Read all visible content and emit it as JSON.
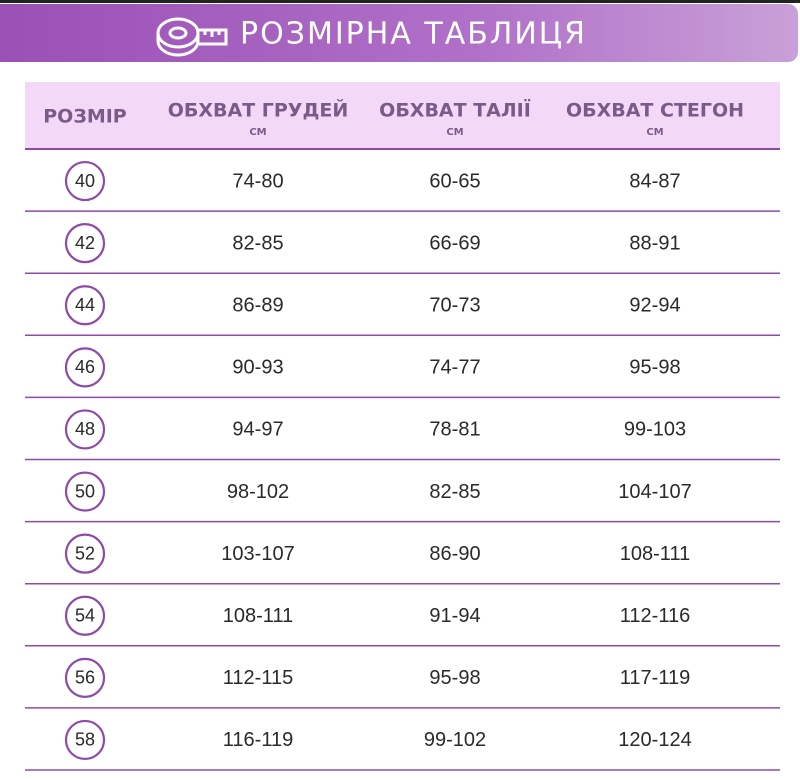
{
  "header": {
    "title": "РОЗМІРНА ТАБЛИЦЯ"
  },
  "table": {
    "columns": [
      {
        "label": "РОЗМІР"
      },
      {
        "label": "ОБХВАТ ГРУДЕЙ",
        "unit": "СМ"
      },
      {
        "label": "ОБХВАТ ТАЛІЇ",
        "unit": "СМ"
      },
      {
        "label": "ОБХВАТ СТЕГОН",
        "unit": "СМ"
      }
    ],
    "rows": [
      [
        "40",
        "74-80",
        "60-65",
        "84-87"
      ],
      [
        "42",
        "82-85",
        "66-69",
        "88-91"
      ],
      [
        "44",
        "86-89",
        "70-73",
        "92-94"
      ],
      [
        "46",
        "90-93",
        "74-77",
        "95-98"
      ],
      [
        "48",
        "94-97",
        "78-81",
        "99-103"
      ],
      [
        "50",
        "98-102",
        "82-85",
        "104-107"
      ],
      [
        "52",
        "103-107",
        "86-90",
        "108-111"
      ],
      [
        "54",
        "108-111",
        "91-94",
        "112-116"
      ],
      [
        "56",
        "112-115",
        "95-98",
        "117-119"
      ],
      [
        "58",
        "116-119",
        "99-102",
        "120-124"
      ]
    ]
  }
}
